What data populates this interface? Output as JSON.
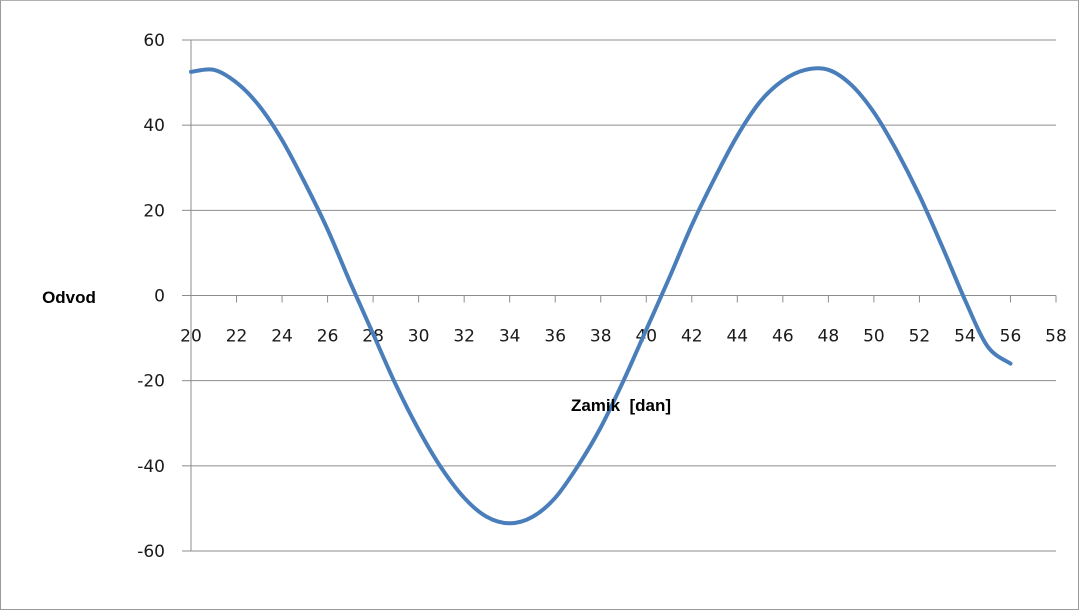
{
  "chart_data": {
    "type": "line",
    "title": "",
    "xlabel": "Zamik  [dan]",
    "ylabel": "Odvod",
    "xlim": [
      20,
      58
    ],
    "ylim": [
      -60,
      60
    ],
    "x_ticks": [
      "20",
      "22",
      "24",
      "26",
      "28",
      "30",
      "32",
      "34",
      "36",
      "38",
      "40",
      "42",
      "44",
      "46",
      "48",
      "50",
      "52",
      "54",
      "56",
      "58"
    ],
    "y_ticks": [
      "60",
      "40",
      "20",
      "0",
      "-20",
      "-40",
      "-60"
    ],
    "grid": "horizontal",
    "legend": "none",
    "series_color": "#4a7ebb",
    "series": [
      {
        "x": [
          20,
          21,
          22,
          23,
          24,
          25,
          26,
          27,
          28,
          29,
          30,
          31,
          32,
          33,
          34,
          35,
          36,
          37,
          38,
          39,
          40,
          41,
          42,
          43,
          44,
          45,
          46,
          47,
          48,
          49,
          50,
          51,
          52,
          53,
          54,
          55,
          56
        ],
        "y": [
          52.5,
          53.0,
          50.0,
          44.5,
          36.5,
          26.5,
          15.5,
          3.0,
          -9.0,
          -21.0,
          -31.5,
          -40.5,
          -47.5,
          -52.0,
          -53.5,
          -52.0,
          -47.5,
          -40.0,
          -31.0,
          -20.0,
          -8.0,
          4.0,
          16.5,
          27.5,
          37.5,
          45.5,
          50.5,
          53.0,
          53.0,
          49.5,
          43.0,
          34.0,
          23.5,
          11.5,
          -1.0,
          -12.0,
          -16.0
        ]
      }
    ]
  }
}
